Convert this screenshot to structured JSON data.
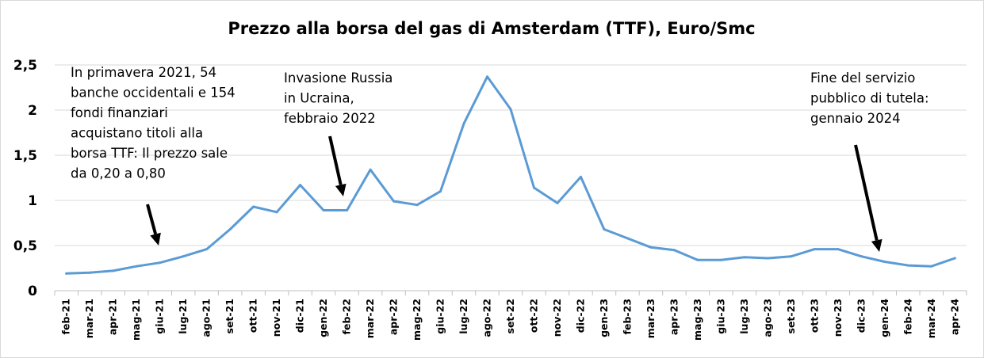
{
  "chart_data": {
    "type": "line",
    "title": "Prezzo alla borsa del gas di Amsterdam (TTF), Euro/Smc",
    "xlabel": "",
    "ylabel": "",
    "ylim": [
      0,
      2.5
    ],
    "y_ticks": [
      "0",
      "0,5",
      "1",
      "1,5",
      "2",
      "2,5"
    ],
    "grid": true,
    "line_color": "#5B9BD5",
    "categories": [
      "feb-21",
      "mar-21",
      "apr-21",
      "mag-21",
      "giu-21",
      "lug-21",
      "ago-21",
      "set-21",
      "ott-21",
      "nov-21",
      "dic-21",
      "gen-22",
      "feb-22",
      "mar-22",
      "apr-22",
      "mag-22",
      "giu-22",
      "lug-22",
      "ago-22",
      "set-22",
      "ott-22",
      "nov-22",
      "dic-22",
      "gen-23",
      "feb-23",
      "mar-23",
      "apr-23",
      "mag-23",
      "giu-23",
      "lug-23",
      "ago-23",
      "set-23",
      "ott-23",
      "nov-23",
      "dic-23",
      "gen-24",
      "feb-24",
      "mar-24",
      "apr-24"
    ],
    "series": [
      {
        "values": [
          0.19,
          0.2,
          0.22,
          0.27,
          0.31,
          0.38,
          0.46,
          0.68,
          0.93,
          0.87,
          1.17,
          0.89,
          0.89,
          1.34,
          0.99,
          0.95,
          1.1,
          1.85,
          2.37,
          2.01,
          1.14,
          0.97,
          1.26,
          0.68,
          0.58,
          0.48,
          0.45,
          0.34,
          0.34,
          0.37,
          0.36,
          0.38,
          0.46,
          0.46,
          0.38,
          0.32,
          0.28,
          0.27,
          0.36
        ]
      }
    ],
    "annotations": [
      {
        "lines": [
          "In primavera 2021, 54",
          "banche occidentali e 154",
          "fondi finanziari",
          "acquistano titoli alla",
          "borsa TTF: Il prezzo sale",
          "da 0,20 a 0,80"
        ],
        "target_category": "giu-21"
      },
      {
        "lines": [
          "Invasione Russia",
          "in Ucraina,",
          "febbraio 2022"
        ],
        "target_category": "feb-22"
      },
      {
        "lines": [
          "Fine del servizio",
          "pubblico di tutela:",
          "gennaio 2024"
        ],
        "target_category": "gen-24"
      }
    ]
  }
}
